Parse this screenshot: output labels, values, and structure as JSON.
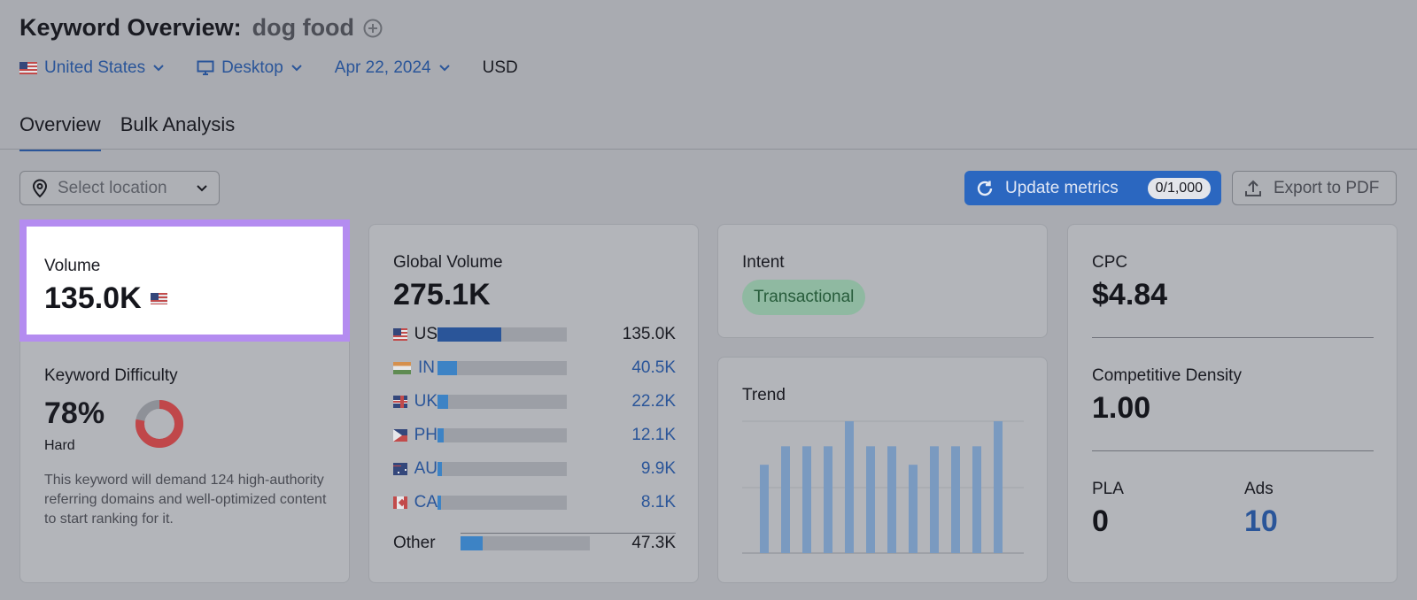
{
  "header": {
    "title": "Keyword Overview:",
    "keyword": "dog food",
    "filters": {
      "country": "United States",
      "device": "Desktop",
      "date": "Apr 22, 2024",
      "currency": "USD"
    }
  },
  "tabs": [
    {
      "label": "Overview",
      "active": true
    },
    {
      "label": "Bulk Analysis",
      "active": false
    }
  ],
  "toolbar": {
    "location_placeholder": "Select location",
    "update_label": "Update metrics",
    "update_badge": "0/1,000",
    "export_label": "Export to PDF"
  },
  "volume": {
    "label": "Volume",
    "value": "135.0K"
  },
  "difficulty": {
    "label": "Keyword Difficulty",
    "value": "78%",
    "level": "Hard",
    "percent": 78,
    "description": "This keyword will demand 124 high-authority referring domains and well-optimized content to start ranking for it."
  },
  "global_volume": {
    "label": "Global Volume",
    "value": "275.1K",
    "countries": [
      {
        "code": "US",
        "value": "135.0K",
        "share": 0.49
      },
      {
        "code": "IN",
        "value": "40.5K",
        "share": 0.15
      },
      {
        "code": "UK",
        "value": "22.2K",
        "share": 0.08
      },
      {
        "code": "PH",
        "value": "12.1K",
        "share": 0.045
      },
      {
        "code": "AU",
        "value": "9.9K",
        "share": 0.035
      },
      {
        "code": "CA",
        "value": "8.1K",
        "share": 0.03
      }
    ],
    "other": {
      "code": "Other",
      "value": "47.3K",
      "share": 0.17
    }
  },
  "intent": {
    "label": "Intent",
    "value": "Transactional"
  },
  "trend": {
    "label": "Trend",
    "chart_data": {
      "type": "bar",
      "values": [
        0.67,
        0.81,
        0.81,
        0.81,
        1.0,
        0.81,
        0.81,
        0.67,
        0.81,
        0.81,
        0.81,
        1.0
      ],
      "ylim": [
        0,
        1
      ],
      "grid": true
    }
  },
  "cpc": {
    "label": "CPC",
    "value": "$4.84"
  },
  "competitive_density": {
    "label": "Competitive Density",
    "value": "1.00"
  },
  "pla": {
    "label": "PLA",
    "value": "0"
  },
  "ads": {
    "label": "Ads",
    "value": "10"
  },
  "colors": {
    "accent": "#2b67c0",
    "link": "#2a5599",
    "highlight": "#b48cf0",
    "difficulty": "#c0474a",
    "intent_bg": "#8fb9a1"
  }
}
